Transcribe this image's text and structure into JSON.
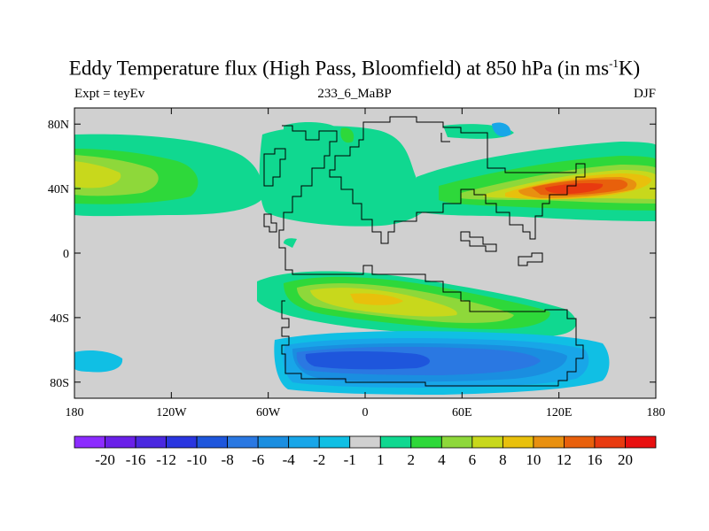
{
  "title": {
    "main_prefix": "Eddy Temperature flux (High Pass, Bloomfield) at 850 hPa (in ms",
    "superscript": "-1",
    "main_suffix": "K)"
  },
  "left_label": "Expt = teyEv",
  "center_label": "233_6_MaBP",
  "right_label": "DJF",
  "background_color": "#d0d0d0",
  "chart_data": {
    "type": "filled-contour-map",
    "projection": "cylindrical-equidistant",
    "lon_range": [
      -180,
      180
    ],
    "lat_range": [
      -90,
      90
    ],
    "lat_ticks": [
      {
        "value": 80,
        "label": "80N"
      },
      {
        "value": 40,
        "label": "40N"
      },
      {
        "value": 0,
        "label": "0"
      },
      {
        "value": -40,
        "label": "40S"
      },
      {
        "value": -80,
        "label": "80S"
      }
    ],
    "lon_ticks": [
      {
        "value": -180,
        "label": "180"
      },
      {
        "value": -120,
        "label": "120W"
      },
      {
        "value": -60,
        "label": "60W"
      },
      {
        "value": 0,
        "label": "0"
      },
      {
        "value": 60,
        "label": "60E"
      },
      {
        "value": 120,
        "label": "120E"
      },
      {
        "value": 180,
        "label": "180"
      }
    ],
    "colorbar": {
      "levels": [
        "-20",
        "-16",
        "-12",
        "-10",
        "-8",
        "-6",
        "-4",
        "-2",
        "-1",
        "1",
        "2",
        "4",
        "6",
        "8",
        "10",
        "12",
        "16",
        "20"
      ],
      "colors": [
        "#8c2cff",
        "#6a20e8",
        "#4a28e0",
        "#2a36e0",
        "#1e56dc",
        "#2a78e2",
        "#1a8ee0",
        "#18a6e8",
        "#10bfe4",
        "#d0d0d0",
        "#10d890",
        "#2ed83a",
        "#8ed83a",
        "#c8d81c",
        "#e8c00c",
        "#e89010",
        "#e8600c",
        "#e83a10",
        "#e81010"
      ]
    }
  }
}
